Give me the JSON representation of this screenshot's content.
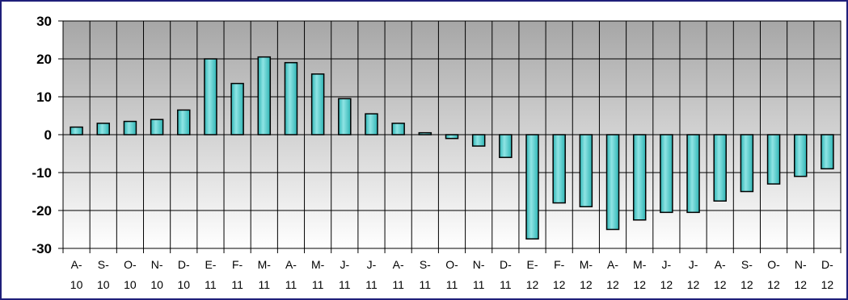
{
  "chart_data": {
    "type": "bar",
    "categories": [
      [
        "A-",
        "10"
      ],
      [
        "S-",
        "10"
      ],
      [
        "O-",
        "10"
      ],
      [
        "N-",
        "10"
      ],
      [
        "D-",
        "10"
      ],
      [
        "E-",
        "11"
      ],
      [
        "F-",
        "11"
      ],
      [
        "M-",
        "11"
      ],
      [
        "A-",
        "11"
      ],
      [
        "M-",
        "11"
      ],
      [
        "J-",
        "11"
      ],
      [
        "J-",
        "11"
      ],
      [
        "A-",
        "11"
      ],
      [
        "S-",
        "11"
      ],
      [
        "O-",
        "11"
      ],
      [
        "N-",
        "11"
      ],
      [
        "D-",
        "11"
      ],
      [
        "E-",
        "12"
      ],
      [
        "F-",
        "12"
      ],
      [
        "M-",
        "12"
      ],
      [
        "A-",
        "12"
      ],
      [
        "M-",
        "12"
      ],
      [
        "J-",
        "12"
      ],
      [
        "J-",
        "12"
      ],
      [
        "A-",
        "12"
      ],
      [
        "S-",
        "12"
      ],
      [
        "O-",
        "12"
      ],
      [
        "N-",
        "12"
      ],
      [
        "D-",
        "12"
      ]
    ],
    "values": [
      2,
      3,
      3.5,
      4,
      6.5,
      20,
      13.5,
      20.5,
      19,
      16,
      9.5,
      5.5,
      3,
      0.5,
      -1,
      -3,
      -6,
      -27.5,
      -18,
      -19,
      -25,
      -22.5,
      -20.5,
      -20.5,
      -17.5,
      -15,
      -13,
      -11,
      -9
    ],
    "yticks": [
      "30",
      "20",
      "10",
      "0",
      "-10",
      "-20",
      "-30"
    ],
    "ylim": [
      -30,
      30
    ],
    "grid": true,
    "colors": {
      "bar_fill": "#2fb5b5",
      "bar_highlight": "#8fe4e4",
      "bar_stroke": "#000000",
      "plot_top": "#a6a6a6",
      "plot_bottom": "#ffffff",
      "grid": "#000000",
      "frame": "#1f1f7a"
    }
  }
}
